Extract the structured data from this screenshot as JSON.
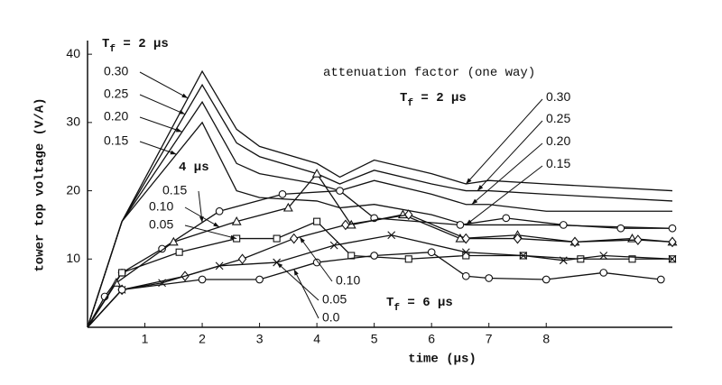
{
  "chart_data": {
    "type": "line",
    "xlabel": "time (µs)",
    "ylabel": "tower top voltage (V/A)",
    "xlim": [
      0,
      10.2
    ],
    "ylim": [
      0,
      42
    ],
    "xticks": [
      1,
      2,
      3,
      4,
      5,
      6,
      7,
      8
    ],
    "yticks": [
      10,
      20,
      30,
      40
    ],
    "grid": false,
    "color": "#111111",
    "series": [
      {
        "name": "0.30",
        "marker": "none",
        "x": [
          0,
          0.6,
          2,
          2.6,
          3,
          4,
          4.4,
          5,
          6,
          6.6,
          7,
          8,
          10.2
        ],
        "values": [
          0,
          15.5,
          37.5,
          29,
          26.5,
          24,
          22,
          24.5,
          22.5,
          21,
          21.5,
          21,
          20
        ]
      },
      {
        "name": "0.25",
        "marker": "none",
        "x": [
          0,
          0.6,
          2,
          2.6,
          3,
          4,
          4.4,
          5,
          6,
          6.6,
          7,
          8,
          10.2
        ],
        "values": [
          0,
          15.5,
          35.5,
          27,
          25,
          22.5,
          21,
          23,
          21,
          20,
          20,
          19.5,
          18.5
        ]
      },
      {
        "name": "0.20",
        "marker": "none",
        "x": [
          0,
          0.6,
          2,
          2.6,
          3,
          4,
          4.4,
          5,
          6,
          6.6,
          7,
          8,
          10.2
        ],
        "values": [
          0,
          15.5,
          33,
          24,
          22.5,
          21,
          20,
          21.5,
          19.5,
          18,
          18,
          17,
          17
        ]
      },
      {
        "name": "0.15",
        "marker": "none",
        "x": [
          0,
          0.6,
          2,
          2.6,
          3,
          4,
          4.4,
          5,
          6,
          6.6,
          7,
          8,
          10.2
        ],
        "values": [
          0,
          15.5,
          30,
          20,
          19,
          18.5,
          17.5,
          18,
          16.5,
          15,
          15,
          15,
          14.5
        ]
      },
      {
        "name": "0.15",
        "marker": "circle",
        "x": [
          0,
          0.3,
          0.6,
          1.3,
          2.3,
          3.4,
          4.4,
          5,
          6.5,
          7.3,
          8.3,
          9.3,
          10.2
        ],
        "values": [
          0,
          4.5,
          8,
          11.5,
          17,
          19.5,
          20,
          16,
          15,
          16,
          15,
          14.5,
          14.5
        ]
      },
      {
        "name": "0.10",
        "marker": "triangle",
        "x": [
          0,
          0.5,
          1.5,
          2.6,
          3.5,
          4,
          4.6,
          5.5,
          6.5,
          7.5,
          8.5,
          9.5,
          10.2
        ],
        "values": [
          0,
          6.5,
          12.5,
          15.5,
          17.5,
          22.5,
          15,
          16.5,
          13,
          13.5,
          12.5,
          13,
          12.5
        ]
      },
      {
        "name": "0.05",
        "marker": "square",
        "x": [
          0,
          0.6,
          1.6,
          2.6,
          3.3,
          4,
          4.6,
          5.6,
          6.6,
          7.6,
          8.6,
          9.5,
          10.2
        ],
        "values": [
          0,
          8,
          11,
          13,
          13,
          15.5,
          10.5,
          10,
          10.5,
          10.5,
          10,
          10,
          10
        ]
      },
      {
        "name": "0.10",
        "marker": "diamond",
        "x": [
          0,
          0.6,
          1.7,
          2.7,
          3.6,
          4.5,
          5.6,
          6.6,
          7.5,
          8.5,
          9.6,
          10.2
        ],
        "values": [
          0,
          5.5,
          7.5,
          10,
          13,
          15,
          16.5,
          13,
          13,
          12.5,
          12.8,
          12.5
        ]
      },
      {
        "name": "0.05",
        "marker": "x",
        "x": [
          0,
          0.6,
          1.3,
          2.3,
          3.3,
          4.3,
          5.3,
          6.6,
          7.6,
          8.3,
          9,
          10.2
        ],
        "values": [
          0,
          5.5,
          6.5,
          9,
          9.5,
          12,
          13.5,
          11,
          10.5,
          9.8,
          10.5,
          10
        ]
      },
      {
        "name": "0.0",
        "marker": "circle",
        "x": [
          0,
          0.6,
          2,
          3,
          4,
          5,
          6,
          6.6,
          7,
          8,
          9,
          10
        ],
        "values": [
          0,
          5.5,
          7,
          7,
          9.5,
          10.5,
          11,
          7.5,
          7.2,
          7,
          8,
          7
        ]
      }
    ],
    "annotations": [
      {
        "text": "T",
        "sub": "f",
        "rest": " = 2 µs"
      },
      {
        "text": "4 µs"
      },
      {
        "text": "T",
        "sub": "f",
        "rest": " = 6 µs"
      },
      {
        "text": "attenuation factor (one way)"
      },
      {
        "text": "T",
        "sub": "f",
        "rest": " = 2 µs"
      },
      {
        "text": "0.30"
      },
      {
        "text": "0.25"
      },
      {
        "text": "0.20"
      },
      {
        "text": "0.15"
      }
    ]
  }
}
